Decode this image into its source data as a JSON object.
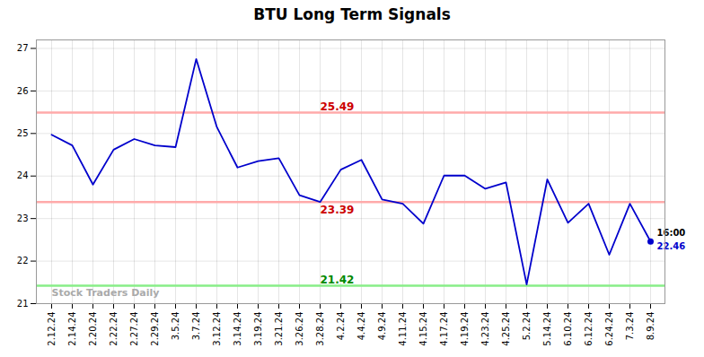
{
  "chart_data": {
    "type": "line",
    "title": "BTU Long Term Signals",
    "categories": [
      "2.12.24",
      "2.14.24",
      "2.20.24",
      "2.22.24",
      "2.27.24",
      "2.29.24",
      "3.5.24",
      "3.7.24",
      "3.12.24",
      "3.14.24",
      "3.19.24",
      "3.21.24",
      "3.26.24",
      "3.28.24",
      "4.2.24",
      "4.4.24",
      "4.9.24",
      "4.11.24",
      "4.15.24",
      "4.17.24",
      "4.19.24",
      "4.23.24",
      "4.25.24",
      "5.2.24",
      "5.14.24",
      "6.10.24",
      "6.12.24",
      "6.24.24",
      "7.3.24",
      "8.9.24"
    ],
    "values": [
      24.97,
      24.72,
      23.8,
      24.62,
      24.87,
      24.72,
      24.68,
      26.75,
      25.15,
      24.2,
      24.35,
      24.42,
      23.55,
      23.39,
      24.15,
      24.38,
      23.45,
      23.35,
      22.88,
      24.01,
      24.01,
      23.7,
      23.85,
      21.45,
      23.92,
      22.9,
      23.35,
      22.15,
      23.35,
      22.46
    ],
    "color": "#0000cc",
    "ylim": [
      21.0,
      27.2
    ],
    "yticks": [
      21,
      22,
      23,
      24,
      25,
      26,
      27
    ],
    "grid": true,
    "hlines": [
      {
        "value": 25.49,
        "color": "#ffaaaa",
        "label": "25.49",
        "label_color": "#cc0000"
      },
      {
        "value": 23.39,
        "color": "#ffaaaa",
        "label": "23.39",
        "label_color": "#cc0000"
      },
      {
        "value": 21.42,
        "color": "#88ee88",
        "label": "21.42",
        "label_color": "#008800"
      }
    ],
    "end_marker": {
      "color": "#0000cc",
      "marker": "circle"
    },
    "end_labels": [
      {
        "text": "16:00",
        "color": "#000000"
      },
      {
        "text": "22.46",
        "color": "#0000cc"
      }
    ],
    "watermark": {
      "text": "Stock Traders Daily",
      "color": "#aaaaaa"
    }
  }
}
